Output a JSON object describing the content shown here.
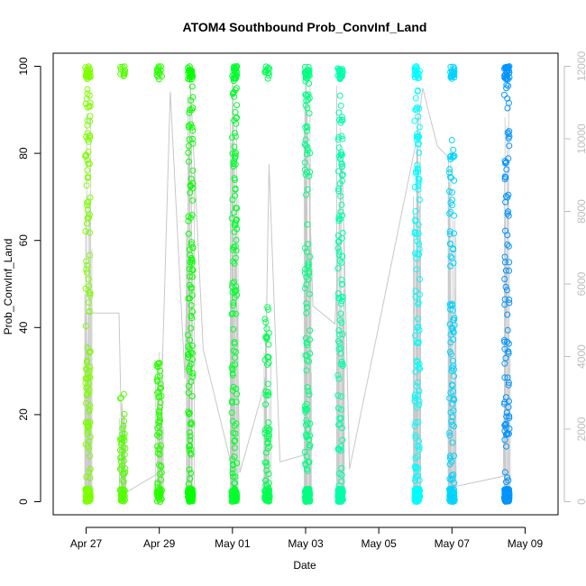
{
  "chart_data": {
    "type": "scatter",
    "title": "ATOM4 Southbound Prob_ConvInf_Land",
    "xlabel": "Date",
    "ylabel": "Prob_ConvInf_Land",
    "ylim": [
      0,
      100
    ],
    "y2lim": [
      0,
      12000
    ],
    "x_ticks": [
      "Apr 27",
      "Apr 29",
      "May 01",
      "May 03",
      "May 05",
      "May 07",
      "May 09"
    ],
    "y_ticks": [
      0,
      20,
      40,
      60,
      80,
      100
    ],
    "y2_ticks": [
      0,
      2000,
      4000,
      6000,
      8000,
      10000,
      12000
    ],
    "x_start_label": "Apr 26",
    "point_color_scale": [
      "#7fff00",
      "#00ff00",
      "#00ff7f",
      "#00ffff",
      "#007fff"
    ],
    "secondary_series_color": "#c8c8c8",
    "grid": false,
    "legend": "none",
    "clusters": [
      {
        "day": 1.05,
        "level": 0.95
      },
      {
        "day": 2.0,
        "level": 0.25
      },
      {
        "day": 3.0,
        "level": 0.35
      },
      {
        "day": 3.85,
        "level": 1.0
      },
      {
        "day": 5.05,
        "level": 1.0
      },
      {
        "day": 5.95,
        "level": 0.45
      },
      {
        "day": 7.05,
        "level": 1.0
      },
      {
        "day": 7.95,
        "level": 1.0
      },
      {
        "day": 10.05,
        "level": 0.95
      },
      {
        "day": 11.0,
        "level": 0.85
      },
      {
        "day": 12.5,
        "level": 1.0
      }
    ],
    "secondary_series": {
      "points": [
        [
          1.0,
          0
        ],
        [
          1.0,
          5200
        ],
        [
          1.9,
          5200
        ],
        [
          2.0,
          200
        ],
        [
          3.0,
          800
        ],
        [
          3.3,
          11300
        ],
        [
          3.7,
          3400
        ],
        [
          3.85,
          11500
        ],
        [
          4.2,
          4200
        ],
        [
          5.0,
          900
        ],
        [
          5.0,
          11900
        ],
        [
          5.2,
          800
        ],
        [
          5.9,
          3300
        ],
        [
          6.0,
          9300
        ],
        [
          6.3,
          1100
        ],
        [
          7.0,
          1300
        ],
        [
          7.0,
          11800
        ],
        [
          7.2,
          5400
        ],
        [
          7.8,
          4900
        ],
        [
          8.0,
          9400
        ],
        [
          8.2,
          900
        ],
        [
          10.0,
          9800
        ],
        [
          10.2,
          11400
        ],
        [
          10.6,
          9800
        ],
        [
          10.9,
          9500
        ],
        [
          11.0,
          400
        ],
        [
          12.4,
          700
        ],
        [
          12.55,
          9200
        ]
      ]
    }
  }
}
